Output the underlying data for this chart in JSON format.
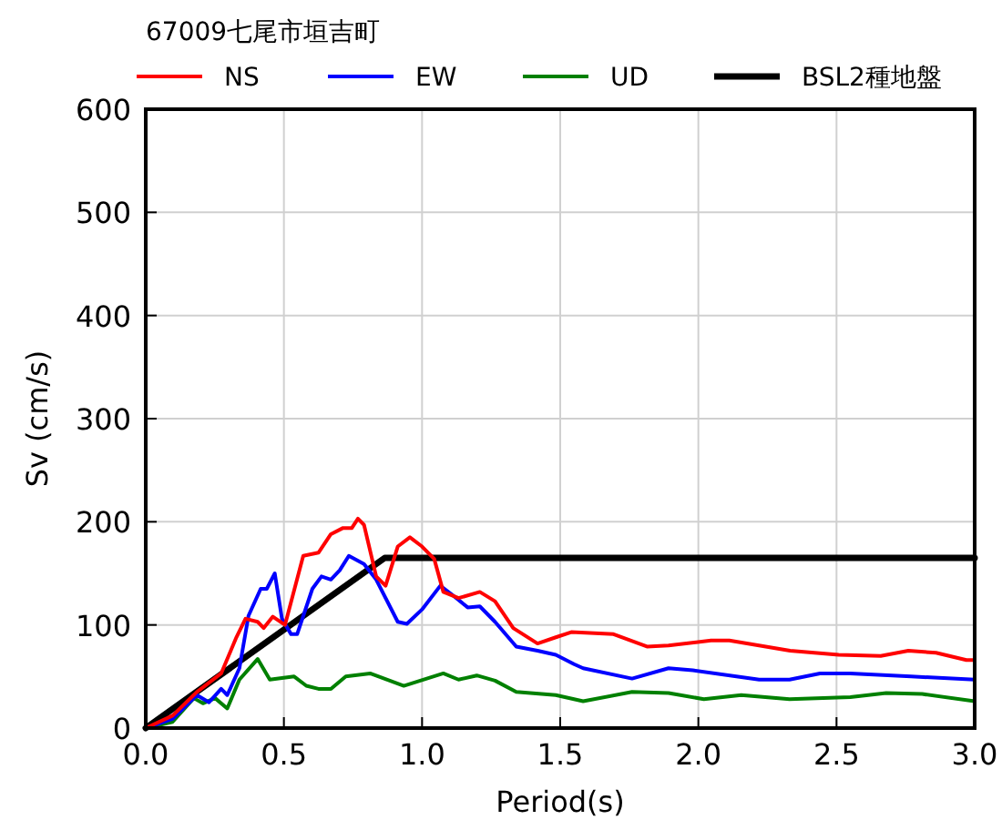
{
  "chart_data": {
    "type": "line",
    "title": "67009七尾市垣吉町",
    "xlabel": "Period(s)",
    "ylabel": "Sv (cm/s)",
    "xlim": [
      0,
      3
    ],
    "ylim": [
      0,
      600
    ],
    "xticks": [
      {
        "value": 0,
        "label": "0.0"
      },
      {
        "value": 0.5,
        "label": "0.5"
      },
      {
        "value": 1,
        "label": "1.0"
      },
      {
        "value": 1.5,
        "label": "1.5"
      },
      {
        "value": 2,
        "label": "2.0"
      },
      {
        "value": 2.5,
        "label": "2.5"
      },
      {
        "value": 3,
        "label": "3.0"
      }
    ],
    "yticks": [
      0,
      100,
      200,
      300,
      400,
      500,
      600
    ],
    "grid": true,
    "legend": "top",
    "line_style": "solid",
    "marker": "none",
    "series": [
      {
        "name": "NS",
        "color": "#ff0000",
        "x": [
          0,
          0.097,
          0.185,
          0.273,
          0.328,
          0.361,
          0.405,
          0.427,
          0.46,
          0.504,
          0.57,
          0.625,
          0.67,
          0.714,
          0.746,
          0.768,
          0.79,
          0.834,
          0.868,
          0.912,
          0.956,
          1.0,
          1.044,
          1.077,
          1.132,
          1.209,
          1.264,
          1.33,
          1.418,
          1.484,
          1.54,
          1.693,
          1.814,
          1.892,
          2.046,
          2.112,
          2.332,
          2.508,
          2.66,
          2.76,
          2.86,
          2.97,
          3.0
        ],
        "values": [
          0,
          12,
          35,
          53,
          88,
          106,
          103,
          97,
          108,
          100,
          167,
          170,
          188,
          194,
          194,
          203,
          197,
          147,
          138,
          176,
          185,
          176,
          164,
          132,
          126,
          132,
          123,
          97,
          82,
          88,
          93,
          91,
          79,
          80,
          85,
          85,
          75,
          71,
          70,
          75,
          73,
          66,
          66
        ]
      },
      {
        "name": "EW",
        "color": "#0000ff",
        "x": [
          0,
          0.097,
          0.185,
          0.229,
          0.273,
          0.295,
          0.339,
          0.372,
          0.416,
          0.438,
          0.467,
          0.493,
          0.526,
          0.548,
          0.603,
          0.636,
          0.67,
          0.702,
          0.735,
          0.79,
          0.834,
          0.912,
          0.945,
          1.0,
          1.066,
          1.11,
          1.165,
          1.209,
          1.264,
          1.341,
          1.418,
          1.484,
          1.55,
          1.583,
          1.76,
          1.892,
          1.98,
          2.22,
          2.33,
          2.44,
          2.55,
          2.77,
          3.0
        ],
        "values": [
          0,
          9,
          32,
          25,
          38,
          32,
          58,
          109,
          135,
          135,
          150,
          106,
          91,
          91,
          135,
          147,
          144,
          153,
          167,
          159,
          144,
          103,
          101,
          115,
          138,
          129,
          117,
          118,
          103,
          79,
          75,
          71,
          62,
          58,
          48,
          58,
          56,
          47,
          47,
          53,
          53,
          50,
          47
        ]
      },
      {
        "name": "UD",
        "color": "#008000",
        "x": [
          0,
          0.097,
          0.174,
          0.207,
          0.251,
          0.295,
          0.339,
          0.405,
          0.449,
          0.537,
          0.581,
          0.625,
          0.67,
          0.724,
          0.812,
          0.934,
          1.077,
          1.132,
          1.198,
          1.264,
          1.341,
          1.484,
          1.55,
          1.583,
          1.76,
          1.892,
          2.02,
          2.155,
          2.33,
          2.55,
          2.68,
          2.81,
          3.0
        ],
        "values": [
          0,
          6,
          29,
          24,
          29,
          19,
          47,
          67,
          47,
          50,
          41,
          38,
          38,
          50,
          53,
          41,
          53,
          47,
          51,
          46,
          35,
          32,
          28,
          26,
          35,
          34,
          28,
          32,
          28,
          30,
          34,
          33,
          26
        ]
      },
      {
        "name": "BSL2種地盤",
        "color": "#000000",
        "x": [
          0,
          0.865,
          3.0
        ],
        "values": [
          0,
          165,
          165
        ]
      }
    ]
  }
}
